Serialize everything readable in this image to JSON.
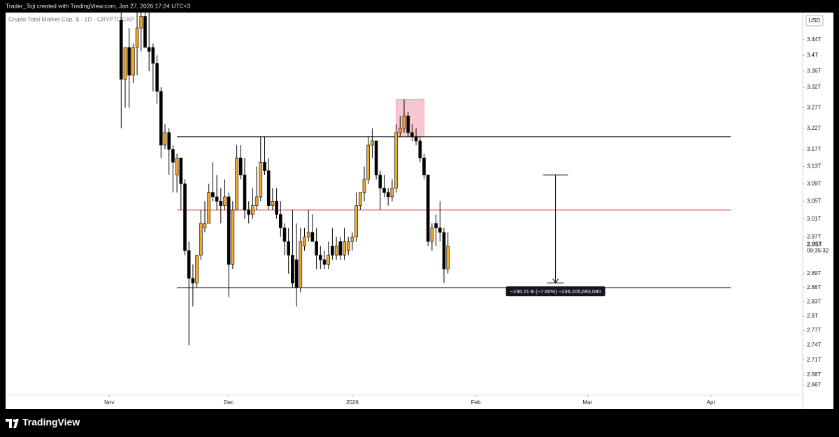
{
  "header": {
    "text": "Trader_Toji created with TradingView.com, Jan 27, 2026 17:24 UTC+3"
  },
  "footer": {
    "brand": "TradingView"
  },
  "chart_data": {
    "type": "candlestick",
    "title": "Crypto Total Market Cap, $ - 1D - CRYPTOCAP",
    "currency": "USD",
    "up_color": "#f5a623",
    "down_color": "#000000",
    "log_scale": true,
    "xlim": [
      0,
      200
    ],
    "xticks": [
      {
        "value": 26,
        "label": "Nov"
      },
      {
        "value": 56,
        "label": "Dec"
      },
      {
        "value": 87,
        "label": "2026"
      },
      {
        "value": 118,
        "label": "Feb"
      },
      {
        "value": 146,
        "label": "Mar"
      },
      {
        "value": 177,
        "label": "Apr"
      }
    ],
    "ylim": [
      2.64,
      3.51
    ],
    "yticks": [
      {
        "value": 3.44,
        "label": "3.44T"
      },
      {
        "value": 3.4,
        "label": "3.4T"
      },
      {
        "value": 3.36,
        "label": "3.36T"
      },
      {
        "value": 3.32,
        "label": "3.32T"
      },
      {
        "value": 3.27,
        "label": "3.27T"
      },
      {
        "value": 3.22,
        "label": "3.22T"
      },
      {
        "value": 3.17,
        "label": "3.17T"
      },
      {
        "value": 3.13,
        "label": "3.13T"
      },
      {
        "value": 3.09,
        "label": "3.09T"
      },
      {
        "value": 3.05,
        "label": "3.05T"
      },
      {
        "value": 3.01,
        "label": "3.01T"
      },
      {
        "value": 2.97,
        "label": "2.97T"
      },
      {
        "value": 2.89,
        "label": "2.89T"
      },
      {
        "value": 2.86,
        "label": "2.86T"
      },
      {
        "value": 2.83,
        "label": "2.83T"
      },
      {
        "value": 2.8,
        "label": "2.8T"
      },
      {
        "value": 2.77,
        "label": "2.77T"
      },
      {
        "value": 2.74,
        "label": "2.74T"
      },
      {
        "value": 2.71,
        "label": "2.71T"
      },
      {
        "value": 2.68,
        "label": "2.68T"
      },
      {
        "value": 2.66,
        "label": "2.66T"
      }
    ],
    "x": [
      29,
      30,
      31,
      32,
      33,
      34,
      35,
      36,
      37,
      38,
      39,
      40,
      41,
      42,
      43,
      44,
      45,
      46,
      47,
      48,
      49,
      50,
      51,
      52,
      53,
      54,
      55,
      56,
      57,
      58,
      59,
      60,
      61,
      62,
      63,
      64,
      65,
      66,
      67,
      68,
      69,
      70,
      71,
      72,
      73,
      74,
      75,
      76,
      77,
      78,
      79,
      80,
      81,
      82,
      83,
      84,
      85,
      86,
      87,
      88,
      89,
      90,
      91,
      92,
      93,
      94,
      95,
      96,
      97,
      98,
      99,
      100,
      101,
      102,
      103,
      104,
      105,
      106,
      107,
      108,
      109,
      110,
      111
    ],
    "open": [
      3.49,
      3.34,
      3.42,
      3.35,
      3.42,
      3.47,
      3.5,
      3.42,
      3.42,
      3.38,
      3.31,
      3.18,
      3.21,
      3.17,
      3.11,
      3.15,
      3.09,
      2.94,
      2.88,
      2.87,
      2.93,
      2.99,
      3.0,
      3.07,
      3.06,
      3.05,
      3.04,
      3.06,
      2.91,
      3.03,
      3.15,
      3.11,
      3.03,
      3.02,
      3.04,
      3.06,
      3.14,
      3.12,
      3.04,
      3.05,
      3.02,
      2.99,
      2.96,
      2.93,
      2.92,
      2.86,
      2.95,
      2.97,
      2.98,
      2.96,
      2.93,
      2.92,
      2.91,
      2.95,
      2.93,
      2.96,
      2.93,
      2.94,
      2.96,
      2.97,
      3.04,
      3.07,
      3.1,
      3.18,
      3.19,
      3.11,
      3.08,
      3.07,
      3.06,
      3.08,
      3.21,
      3.22,
      3.25,
      3.21,
      3.2,
      3.19,
      3.15,
      3.11,
      2.96,
      3.0,
      2.99,
      2.98,
      2.9
    ],
    "high": [
      3.51,
      3.42,
      3.47,
      3.43,
      3.51,
      3.51,
      3.51,
      3.51,
      3.43,
      3.4,
      3.32,
      3.23,
      3.22,
      3.18,
      3.16,
      3.15,
      3.1,
      2.96,
      2.91,
      2.93,
      3.03,
      3.05,
      3.09,
      3.14,
      3.11,
      3.08,
      3.1,
      3.07,
      3.05,
      3.18,
      3.18,
      3.15,
      3.05,
      3.08,
      3.13,
      3.2,
      3.2,
      3.15,
      3.08,
      3.08,
      3.05,
      3.0,
      2.99,
      3.03,
      3.0,
      2.99,
      2.99,
      3.03,
      3.02,
      2.99,
      2.95,
      2.94,
      2.96,
      2.99,
      2.97,
      2.97,
      2.99,
      2.97,
      2.98,
      3.07,
      3.07,
      3.13,
      3.2,
      3.22,
      3.19,
      3.12,
      3.11,
      3.08,
      3.1,
      3.23,
      3.25,
      3.29,
      3.26,
      3.23,
      3.22,
      3.2,
      3.16,
      3.11,
      3.0,
      3.02,
      3.05,
      2.99,
      2.98
    ],
    "low": [
      3.22,
      3.27,
      3.27,
      3.33,
      3.35,
      3.41,
      3.42,
      3.36,
      3.31,
      3.28,
      3.15,
      3.17,
      3.11,
      3.07,
      3.07,
      3.03,
      2.93,
      2.74,
      2.82,
      2.86,
      2.92,
      2.98,
      3.0,
      3.05,
      3.03,
      3.0,
      3.03,
      2.84,
      2.9,
      3.03,
      3.1,
      3.01,
      3.0,
      3.01,
      3.03,
      3.05,
      3.11,
      3.03,
      3.03,
      3.01,
      2.97,
      2.93,
      2.89,
      2.86,
      2.82,
      2.85,
      2.94,
      2.96,
      2.96,
      2.9,
      2.9,
      2.9,
      2.9,
      2.92,
      2.92,
      2.92,
      2.92,
      2.93,
      2.94,
      2.96,
      3.03,
      3.05,
      3.09,
      3.15,
      3.1,
      3.03,
      3.06,
      3.04,
      3.05,
      3.07,
      3.2,
      3.21,
      3.2,
      3.19,
      3.18,
      3.14,
      3.1,
      2.95,
      2.94,
      2.95,
      2.96,
      2.87,
      2.89
    ],
    "close": [
      3.34,
      3.42,
      3.35,
      3.42,
      3.47,
      3.5,
      3.42,
      3.41,
      3.38,
      3.31,
      3.18,
      3.21,
      3.17,
      3.14,
      3.15,
      3.09,
      2.94,
      2.88,
      2.87,
      2.93,
      3.0,
      3.0,
      3.07,
      3.06,
      3.05,
      3.04,
      3.06,
      2.91,
      3.03,
      3.15,
      3.11,
      3.03,
      3.02,
      3.04,
      3.06,
      3.14,
      3.12,
      3.04,
      3.05,
      3.02,
      2.99,
      2.96,
      2.93,
      2.87,
      2.86,
      2.96,
      2.97,
      2.98,
      2.96,
      2.93,
      2.92,
      2.91,
      2.93,
      2.93,
      2.95,
      2.93,
      2.96,
      2.96,
      2.97,
      3.04,
      3.07,
      3.1,
      3.18,
      3.19,
      3.11,
      3.08,
      3.07,
      3.06,
      3.08,
      3.21,
      3.22,
      3.25,
      3.21,
      3.2,
      3.19,
      3.15,
      3.11,
      2.96,
      2.99,
      2.99,
      2.98,
      2.9,
      2.95
    ],
    "last_price": {
      "value": 2.95,
      "label": "2.95T",
      "countdown": "09:35:32"
    },
    "hlines": [
      {
        "value": 3.2,
        "color": "#000000",
        "x": [
          43,
          182
        ]
      },
      {
        "value": 3.03,
        "color": "#f23645",
        "x": [
          43,
          182
        ]
      },
      {
        "value": 2.86,
        "color": "#000000",
        "x": [
          43,
          182
        ]
      }
    ],
    "box": {
      "x": [
        98,
        105
      ],
      "y": [
        3.2,
        3.29
      ],
      "color": "#f8c6cf"
    },
    "measure": {
      "x": 138,
      "from": 3.11,
      "to": 2.87,
      "label": "−236.21 B (−7.60%) −236,205,693,080"
    }
  }
}
